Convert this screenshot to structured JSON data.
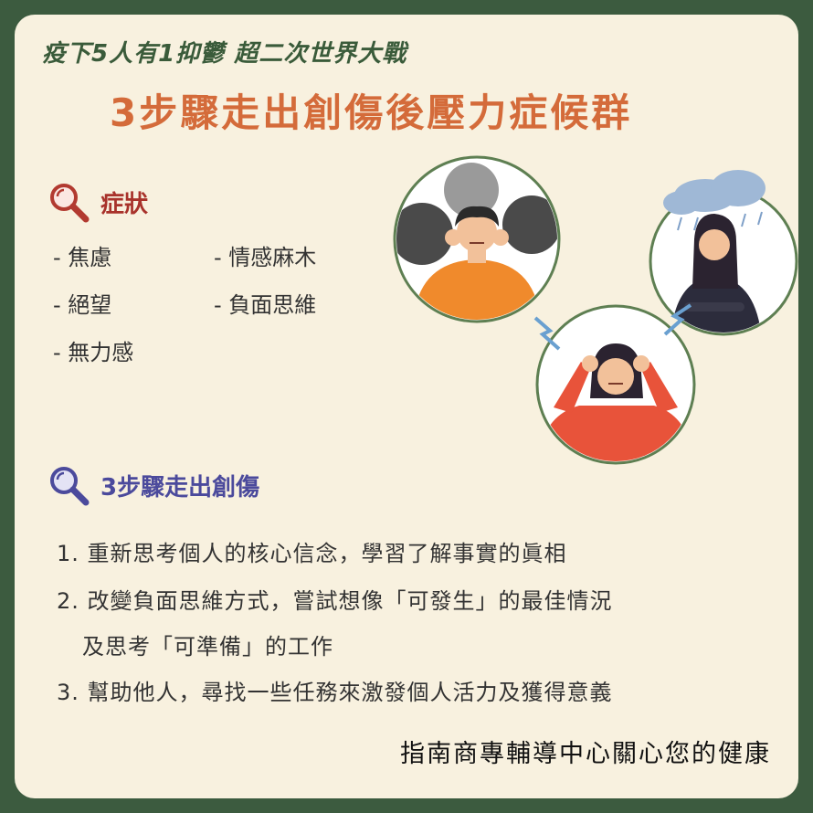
{
  "header": {
    "subtitle": "疫下5人有1抑鬱 超二次世界大戰",
    "title": "3步驟走出創傷後壓力症候群"
  },
  "symptoms": {
    "heading": "症狀",
    "items": [
      "- 焦慮",
      "- 情感麻木",
      "- 絕望",
      "- 負面思維",
      "- 無力感"
    ]
  },
  "steps": {
    "heading": "3步驟走出創傷",
    "items": [
      "1. 重新思考個人的核心信念，學習了解事實的眞相",
      "2. 改變負面思維方式，嘗試想像「可發生」的最佳情況",
      "及思考「可準備」的工作",
      "3. 幫助他人，尋找一些任務來激發個人活力及獲得意義"
    ]
  },
  "footer": {
    "text": "指南商專輔導中心關心您的健康"
  },
  "colors": {
    "frame": "#3c5b3f",
    "card": "#f8f1df",
    "subtitle": "#3a5b3a",
    "title": "#d46b3a",
    "symptom_heading": "#a8322b",
    "steps_heading": "#4b4a9c"
  },
  "icons": [
    "magnifier-icon",
    "magnifier-icon",
    "distressed-man-illustration",
    "sad-woman-rain-illustration",
    "anxious-woman-illustration"
  ]
}
